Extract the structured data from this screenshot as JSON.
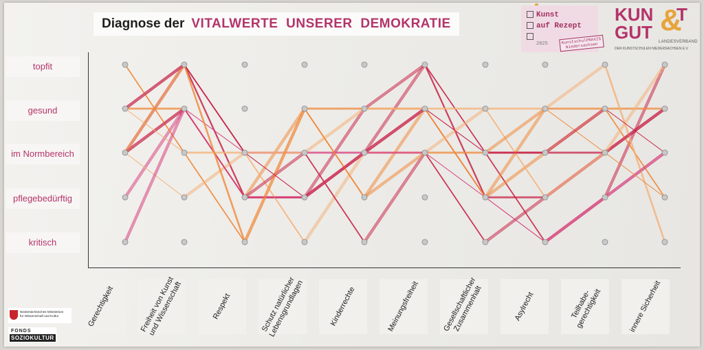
{
  "title": {
    "prefix": "Diagnose der",
    "main": "VITALWERTE  UNSERER  DEMOKRATIE"
  },
  "y_levels": [
    "topfit",
    "gesund",
    "im Normbereich",
    "pflegebedürftig",
    "kritisch"
  ],
  "x_categories": [
    "Gerechtigkeit",
    "Freiheit von Kunst\nund Wissenschaft",
    "Respekt",
    "Schutz natürlicher\nLebensgrundlagen",
    "Kinderrechte",
    "Meinungsfreiheit",
    "Gesellschaftlicher\nZusammenhalt",
    "Asylrecht",
    "Teilhabe-\ngerechtigkeit",
    "innere Sicherheit"
  ],
  "stamp": {
    "line1": "Kunst",
    "line2": "auf Rezept",
    "year": "2025",
    "badge_line1": "KunstschulPRAXIS",
    "badge_line2": "Niedersachsen"
  },
  "logo": {
    "line1": "KUN",
    "line2": "GUT",
    "amp": "&",
    "t_suffix": "T",
    "sub1": "LANDESVERBAND",
    "sub2": "DER KUNSTSCHULEN NIEDERSACHSEN E.V."
  },
  "sponsors": {
    "ministry_line1": "Niedersächsisches Ministerium",
    "ministry_line2": "für Wissenschaft und Kultur",
    "fonds_line1": "FONDS",
    "fonds_line2": "SOZIOKULTUR"
  },
  "colors": {
    "magenta": "#b4336a",
    "red": "#c9274a",
    "orange": "#f08a3c",
    "peach": "#f4b27a",
    "pink": "#d8407e",
    "pin": "#c8c8c8"
  },
  "chart_data": {
    "type": "line",
    "categories": [
      "Gerechtigkeit",
      "Freiheit von Kunst und Wissenschaft",
      "Respekt",
      "Schutz natürlicher Lebensgrundlagen",
      "Kinderrechte",
      "Meinungsfreiheit",
      "Gesellschaftlicher Zusammenhalt",
      "Asylrecht",
      "Teilhabegerechtigkeit",
      "innere Sicherheit"
    ],
    "y_levels": [
      "topfit",
      "gesund",
      "im Normbereich",
      "pflegebedürftig",
      "kritisch"
    ],
    "series": [
      {
        "color": "#c9274a",
        "values": [
          "im Normbereich",
          "topfit",
          "im Normbereich",
          "pflegebedürftig",
          "im Normbereich",
          "topfit",
          "im Normbereich",
          "kritisch",
          "pflegebedürftig",
          "topfit"
        ]
      },
      {
        "color": "#c9274a",
        "values": [
          "gesund",
          "topfit",
          "pflegebedürftig",
          "pflegebedürftig",
          "gesund",
          "topfit",
          "pflegebedürftig",
          "pflegebedürftig",
          "im Normbereich",
          "gesund"
        ]
      },
      {
        "color": "#d8407e",
        "values": [
          "pflegebedürftig",
          "gesund",
          "im Normbereich",
          "im Normbereich",
          "im Normbereich",
          "gesund",
          "pflegebedürftig",
          "kritisch",
          "pflegebedürftig",
          "im Normbereich"
        ]
      },
      {
        "color": "#c9274a",
        "values": [
          "im Normbereich",
          "gesund",
          "pflegebedürftig",
          "pflegebedürftig",
          "im Normbereich",
          "gesund",
          "im Normbereich",
          "im Normbereich",
          "im Normbereich",
          "gesund"
        ]
      },
      {
        "color": "#f08a3c",
        "values": [
          "topfit",
          "im Normbereich",
          "kritisch",
          "gesund",
          "gesund",
          "gesund",
          "pflegebedürftig",
          "gesund",
          "gesund",
          "gesund"
        ]
      },
      {
        "color": "#f08a3c",
        "values": [
          "gesund",
          "gesund",
          "pflegebedürftig",
          "gesund",
          "pflegebedürftig",
          "gesund",
          "pflegebedürftig",
          "im Normbereich",
          "gesund",
          "pflegebedürftig"
        ]
      },
      {
        "color": "#f4b27a",
        "values": [
          "im Normbereich",
          "pflegebedürftig",
          "im Normbereich",
          "kritisch",
          "im Normbereich",
          "im Normbereich",
          "gesund",
          "gesund",
          "topfit",
          "kritisch"
        ]
      },
      {
        "color": "#c9274a",
        "values": [
          "im Normbereich",
          "gesund",
          "pflegebedürftig",
          "im Normbereich",
          "kritisch",
          "im Normbereich",
          "kritisch",
          "pflegebedürftig",
          "im Normbereich",
          "gesund"
        ]
      },
      {
        "color": "#d8407e",
        "values": [
          "kritisch",
          "gesund",
          "pflegebedürftig",
          "pflegebedürftig",
          "im Normbereich",
          "im Normbereich",
          "pflegebedürftig",
          "kritisch",
          "pflegebedürftig",
          "im Normbereich"
        ]
      },
      {
        "color": "#f4b27a",
        "values": [
          "gesund",
          "im Normbereich",
          "im Normbereich",
          "im Normbereich",
          "gesund",
          "gesund",
          "gesund",
          "pflegebedürftig",
          "im Normbereich",
          "topfit"
        ]
      },
      {
        "color": "#f08a3c",
        "values": [
          "im Normbereich",
          "topfit",
          "kritisch",
          "gesund",
          "pflegebedürftig",
          "im Normbereich",
          "im Normbereich",
          "gesund",
          "im Normbereich",
          "pflegebedürftig"
        ]
      },
      {
        "color": "#c9274a",
        "values": [
          "gesund",
          "topfit",
          "im Normbereich",
          "pflegebedürftig",
          "im Normbereich",
          "gesund",
          "im Normbereich",
          "im Normbereich",
          "gesund",
          "im Normbereich"
        ]
      }
    ]
  }
}
